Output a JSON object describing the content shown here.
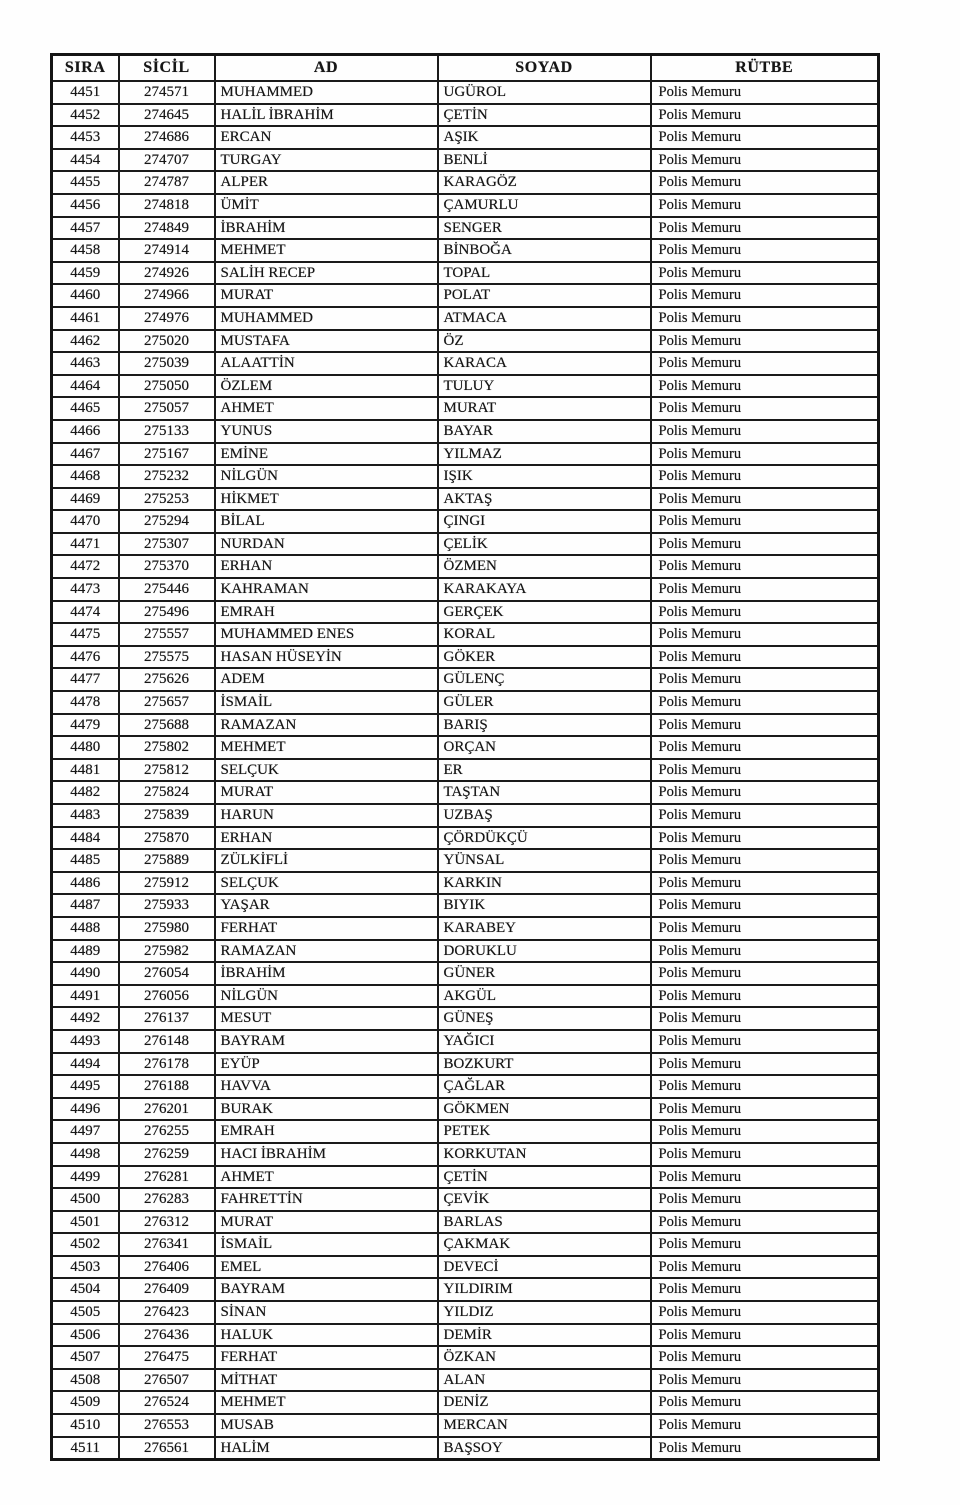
{
  "page": {
    "paper_color": "#fefefe",
    "ink_color": "#161616"
  },
  "table": {
    "columns": [
      "SIRA",
      "SİCİL",
      "AD",
      "SOYAD",
      "RÜTBE"
    ],
    "rows": [
      [
        "4451",
        "274571",
        "MUHAMMED",
        "UGÜROL",
        "Polis Memuru"
      ],
      [
        "4452",
        "274645",
        "HALİL İBRAHİM",
        "ÇETİN",
        "Polis Memuru"
      ],
      [
        "4453",
        "274686",
        "ERCAN",
        "AŞIK",
        "Polis Memuru"
      ],
      [
        "4454",
        "274707",
        "TURGAY",
        "BENLİ",
        "Polis Memuru"
      ],
      [
        "4455",
        "274787",
        "ALPER",
        "KARAGÖZ",
        "Polis Memuru"
      ],
      [
        "4456",
        "274818",
        "ÜMİT",
        "ÇAMURLU",
        "Polis Memuru"
      ],
      [
        "4457",
        "274849",
        "İBRAHİM",
        "SENGER",
        "Polis Memuru"
      ],
      [
        "4458",
        "274914",
        "MEHMET",
        "BİNBOĞA",
        "Polis Memuru"
      ],
      [
        "4459",
        "274926",
        "SALİH RECEP",
        "TOPAL",
        "Polis Memuru"
      ],
      [
        "4460",
        "274966",
        "MURAT",
        "POLAT",
        "Polis Memuru"
      ],
      [
        "4461",
        "274976",
        "MUHAMMED",
        "ATMACA",
        "Polis Memuru"
      ],
      [
        "4462",
        "275020",
        "MUSTAFA",
        "ÖZ",
        "Polis Memuru"
      ],
      [
        "4463",
        "275039",
        "ALAATTİN",
        "KARACA",
        "Polis Memuru"
      ],
      [
        "4464",
        "275050",
        "ÖZLEM",
        "TULUY",
        "Polis Memuru"
      ],
      [
        "4465",
        "275057",
        "AHMET",
        "MURAT",
        "Polis Memuru"
      ],
      [
        "4466",
        "275133",
        "YUNUS",
        "BAYAR",
        "Polis Memuru"
      ],
      [
        "4467",
        "275167",
        "EMİNE",
        "YILMAZ",
        "Polis Memuru"
      ],
      [
        "4468",
        "275232",
        "NİLGÜN",
        "IŞIK",
        "Polis Memuru"
      ],
      [
        "4469",
        "275253",
        "HİKMET",
        "AKTAŞ",
        "Polis Memuru"
      ],
      [
        "4470",
        "275294",
        "BİLAL",
        "ÇINGI",
        "Polis Memuru"
      ],
      [
        "4471",
        "275307",
        "NURDAN",
        "ÇELİK",
        "Polis Memuru"
      ],
      [
        "4472",
        "275370",
        "ERHAN",
        "ÖZMEN",
        "Polis Memuru"
      ],
      [
        "4473",
        "275446",
        "KAHRAMAN",
        "KARAKAYA",
        "Polis Memuru"
      ],
      [
        "4474",
        "275496",
        "EMRAH",
        "GERÇEK",
        "Polis Memuru"
      ],
      [
        "4475",
        "275557",
        "MUHAMMED ENES",
        "KORAL",
        "Polis Memuru"
      ],
      [
        "4476",
        "275575",
        "HASAN HÜSEYİN",
        "GÖKER",
        "Polis Memuru"
      ],
      [
        "4477",
        "275626",
        "ADEM",
        "GÜLENÇ",
        "Polis Memuru"
      ],
      [
        "4478",
        "275657",
        "İSMAİL",
        "GÜLER",
        "Polis Memuru"
      ],
      [
        "4479",
        "275688",
        "RAMAZAN",
        "BARIŞ",
        "Polis Memuru"
      ],
      [
        "4480",
        "275802",
        "MEHMET",
        "ORÇAN",
        "Polis Memuru"
      ],
      [
        "4481",
        "275812",
        "SELÇUK",
        "ER",
        "Polis Memuru"
      ],
      [
        "4482",
        "275824",
        "MURAT",
        "TAŞTAN",
        "Polis Memuru"
      ],
      [
        "4483",
        "275839",
        "HARUN",
        "UZBAŞ",
        "Polis Memuru"
      ],
      [
        "4484",
        "275870",
        "ERHAN",
        "ÇÖRDÜKÇÜ",
        "Polis Memuru"
      ],
      [
        "4485",
        "275889",
        "ZÜLKİFLİ",
        "YÜNSAL",
        "Polis Memuru"
      ],
      [
        "4486",
        "275912",
        "SELÇUK",
        "KARKIN",
        "Polis Memuru"
      ],
      [
        "4487",
        "275933",
        "YAŞAR",
        "BIYIK",
        "Polis Memuru"
      ],
      [
        "4488",
        "275980",
        "FERHAT",
        "KARABEY",
        "Polis Memuru"
      ],
      [
        "4489",
        "275982",
        "RAMAZAN",
        "DORUKLU",
        "Polis Memuru"
      ],
      [
        "4490",
        "276054",
        "İBRAHİM",
        "GÜNER",
        "Polis Memuru"
      ],
      [
        "4491",
        "276056",
        "NİLGÜN",
        "AKGÜL",
        "Polis Memuru"
      ],
      [
        "4492",
        "276137",
        "MESUT",
        "GÜNEŞ",
        "Polis Memuru"
      ],
      [
        "4493",
        "276148",
        "BAYRAM",
        "YAĞICI",
        "Polis Memuru"
      ],
      [
        "4494",
        "276178",
        "EYÜP",
        "BOZKURT",
        "Polis Memuru"
      ],
      [
        "4495",
        "276188",
        "HAVVA",
        "ÇAĞLAR",
        "Polis Memuru"
      ],
      [
        "4496",
        "276201",
        "BURAK",
        "GÖKMEN",
        "Polis Memuru"
      ],
      [
        "4497",
        "276255",
        "EMRAH",
        "PETEK",
        "Polis Memuru"
      ],
      [
        "4498",
        "276259",
        "HACI İBRAHİM",
        "KORKUTAN",
        "Polis Memuru"
      ],
      [
        "4499",
        "276281",
        "AHMET",
        "ÇETİN",
        "Polis Memuru"
      ],
      [
        "4500",
        "276283",
        "FAHRETTİN",
        "ÇEVİK",
        "Polis Memuru"
      ],
      [
        "4501",
        "276312",
        "MURAT",
        "BARLAS",
        "Polis Memuru"
      ],
      [
        "4502",
        "276341",
        "İSMAİL",
        "ÇAKMAK",
        "Polis Memuru"
      ],
      [
        "4503",
        "276406",
        "EMEL",
        "DEVECİ",
        "Polis Memuru"
      ],
      [
        "4504",
        "276409",
        "BAYRAM",
        "YILDIRIM",
        "Polis Memuru"
      ],
      [
        "4505",
        "276423",
        "SİNAN",
        "YILDIZ",
        "Polis Memuru"
      ],
      [
        "4506",
        "276436",
        "HALUK",
        "DEMİR",
        "Polis Memuru"
      ],
      [
        "4507",
        "276475",
        "FERHAT",
        "ÖZKAN",
        "Polis Memuru"
      ],
      [
        "4508",
        "276507",
        "MİTHAT",
        "ALAN",
        "Polis Memuru"
      ],
      [
        "4509",
        "276524",
        "MEHMET",
        "DENİZ",
        "Polis Memuru"
      ],
      [
        "4510",
        "276553",
        "MUSAB",
        "MERCAN",
        "Polis Memuru"
      ],
      [
        "4511",
        "276561",
        "HALİM",
        "BAŞSOY",
        "Polis Memuru"
      ]
    ]
  }
}
